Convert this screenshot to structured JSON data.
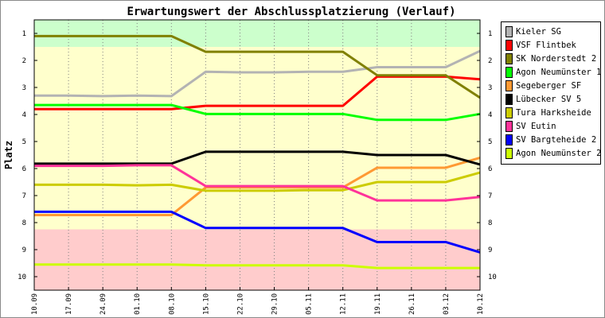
{
  "chart_data": {
    "type": "line",
    "title": "Erwartungswert der Abschlussplatzierung (Verlauf)",
    "ylabel": "Platz",
    "xlabel": "",
    "ylim": [
      10.5,
      0.5
    ],
    "y_ticks": [
      "1",
      "2",
      "3",
      "4",
      "5",
      "6",
      "7",
      "8",
      "9",
      "10"
    ],
    "categories": [
      "10.09",
      "17.09",
      "24.09",
      "01.10",
      "08.10",
      "15.10",
      "22.10",
      "29.10",
      "05.11",
      "12.11",
      "19.11",
      "26.11",
      "03.12",
      "10.12"
    ],
    "bands": [
      {
        "from": 0.5,
        "to": 1.5,
        "color": "#ccffcc"
      },
      {
        "from": 1.5,
        "to": 8.25,
        "color": "#ffffcc"
      },
      {
        "from": 8.25,
        "to": 10.5,
        "color": "#ffcccc"
      }
    ],
    "legend_position": "right",
    "series": [
      {
        "name": "Kieler SG",
        "color": "#b3b3b3",
        "values": [
          3.3,
          3.3,
          3.32,
          3.3,
          3.32,
          2.42,
          2.44,
          2.44,
          2.42,
          2.42,
          2.25,
          2.25,
          2.25,
          1.65
        ]
      },
      {
        "name": "VSF Flintbek",
        "color": "#ff0000",
        "values": [
          3.8,
          3.8,
          3.8,
          3.8,
          3.8,
          3.68,
          3.68,
          3.68,
          3.68,
          3.68,
          2.6,
          2.6,
          2.6,
          2.7
        ]
      },
      {
        "name": "SK Norderstedt 2",
        "color": "#808000",
        "values": [
          1.1,
          1.1,
          1.1,
          1.1,
          1.1,
          1.68,
          1.68,
          1.68,
          1.68,
          1.68,
          2.55,
          2.55,
          2.55,
          3.38
        ]
      },
      {
        "name": "Agon Neumünster 1",
        "color": "#00ff00",
        "values": [
          3.65,
          3.65,
          3.65,
          3.65,
          3.65,
          3.98,
          3.98,
          3.98,
          3.98,
          3.98,
          4.2,
          4.2,
          4.2,
          3.98
        ]
      },
      {
        "name": "Segeberger SF",
        "color": "#ff9933",
        "values": [
          7.72,
          7.72,
          7.72,
          7.72,
          7.72,
          6.7,
          6.7,
          6.7,
          6.7,
          6.7,
          5.97,
          5.97,
          5.97,
          5.6
        ]
      },
      {
        "name": "Lübecker SV 5",
        "color": "#000000",
        "values": [
          5.82,
          5.82,
          5.82,
          5.82,
          5.82,
          5.38,
          5.38,
          5.38,
          5.38,
          5.38,
          5.5,
          5.5,
          5.5,
          5.85
        ]
      },
      {
        "name": "Tura Harksheide",
        "color": "#cccc00",
        "values": [
          6.6,
          6.6,
          6.6,
          6.62,
          6.6,
          6.82,
          6.82,
          6.82,
          6.8,
          6.8,
          6.5,
          6.5,
          6.5,
          6.15
        ]
      },
      {
        "name": "SV Eutin",
        "color": "#ff3399",
        "values": [
          5.9,
          5.9,
          5.9,
          5.88,
          5.88,
          6.65,
          6.65,
          6.65,
          6.65,
          6.65,
          7.18,
          7.18,
          7.18,
          7.05
        ]
      },
      {
        "name": "SV Bargteheide 2",
        "color": "#0000ff",
        "values": [
          7.6,
          7.6,
          7.6,
          7.6,
          7.6,
          8.2,
          8.2,
          8.2,
          8.2,
          8.2,
          8.72,
          8.72,
          8.72,
          9.1
        ]
      },
      {
        "name": "Agon Neumünster 2",
        "color": "#ccff00",
        "values": [
          9.55,
          9.55,
          9.55,
          9.55,
          9.55,
          9.58,
          9.58,
          9.58,
          9.58,
          9.58,
          9.68,
          9.68,
          9.68,
          9.68
        ]
      }
    ]
  }
}
